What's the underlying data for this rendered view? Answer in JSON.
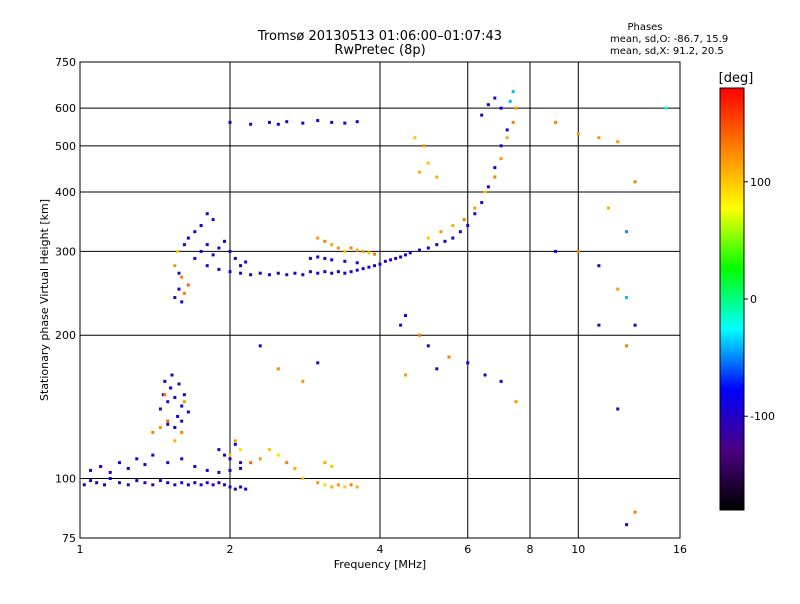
{
  "chart_data": {
    "type": "scatter",
    "title": "Tromsø 20130513 01:06:00–01:07:43",
    "subtitle": "RwPretec (8p)",
    "phase_block": {
      "heading": "Phases",
      "line_o": "mean, sd,O: -86.7, 15.9",
      "line_x": "mean, sd,X:  91.2, 20.5"
    },
    "xlabel": "Frequency [MHz]",
    "ylabel": "Stationary phase Virtual Height [km]",
    "x_scale": "log",
    "y_scale": "log",
    "xlim": [
      1,
      16
    ],
    "ylim": [
      75,
      750
    ],
    "x_ticks": [
      1,
      2,
      4,
      6,
      8,
      10,
      16
    ],
    "x_tick_labels": [
      "1",
      "2",
      "4",
      "6",
      "8",
      "10",
      "16"
    ],
    "y_ticks": [
      75,
      100,
      200,
      300,
      400,
      500,
      600,
      750
    ],
    "y_tick_labels": [
      "75",
      "100",
      "200",
      "300",
      "400",
      "500",
      "600",
      "750"
    ],
    "grid": true,
    "colorbar": {
      "title": "[deg]",
      "range": [
        -180,
        180
      ],
      "ticks": [
        100,
        0,
        -100
      ],
      "tick_labels": [
        "100",
        "0",
        "-100"
      ],
      "colors": [
        "#000000",
        "#4b0082",
        "#0000ff",
        "#00ffff",
        "#00ff00",
        "#ffff00",
        "#ff8000",
        "#ff0000"
      ]
    },
    "series": [
      {
        "points": [
          [
            1.02,
            97,
            -110
          ],
          [
            1.05,
            99,
            -100
          ],
          [
            1.08,
            98,
            -95
          ],
          [
            1.12,
            97,
            -105
          ],
          [
            1.15,
            100,
            -90
          ],
          [
            1.2,
            98,
            -110
          ],
          [
            1.25,
            97,
            -100
          ],
          [
            1.3,
            99,
            -95
          ],
          [
            1.35,
            98,
            -105
          ],
          [
            1.4,
            97,
            -110
          ],
          [
            1.45,
            99,
            -100
          ],
          [
            1.5,
            98,
            -90
          ],
          [
            1.55,
            97,
            -105
          ],
          [
            1.6,
            98,
            -100
          ],
          [
            1.65,
            97,
            -95
          ],
          [
            1.7,
            98,
            -110
          ],
          [
            1.75,
            97,
            -100
          ],
          [
            1.8,
            98,
            -105
          ],
          [
            1.85,
            97,
            -95
          ],
          [
            1.9,
            98,
            -100
          ],
          [
            1.95,
            97,
            -110
          ],
          [
            2.0,
            96,
            -100
          ],
          [
            2.05,
            95,
            -105
          ],
          [
            2.1,
            96,
            -100
          ],
          [
            2.15,
            95,
            -95
          ],
          [
            1.05,
            104,
            -100
          ],
          [
            1.1,
            106,
            -90
          ],
          [
            1.15,
            103,
            -110
          ],
          [
            1.2,
            108,
            -95
          ],
          [
            1.25,
            105,
            -100
          ],
          [
            1.3,
            110,
            -85
          ],
          [
            1.35,
            107,
            -100
          ],
          [
            1.4,
            112,
            -95
          ],
          [
            1.5,
            108,
            -100
          ],
          [
            1.6,
            110,
            -90
          ],
          [
            1.7,
            106,
            -100
          ],
          [
            1.8,
            104,
            -95
          ],
          [
            1.9,
            103,
            -100
          ],
          [
            2.0,
            104,
            -100
          ],
          [
            2.1,
            105,
            -95
          ],
          [
            1.45,
            140,
            -100
          ],
          [
            1.47,
            150,
            -95
          ],
          [
            1.5,
            145,
            -100
          ],
          [
            1.52,
            155,
            -90
          ],
          [
            1.55,
            148,
            -100
          ],
          [
            1.57,
            135,
            -95
          ],
          [
            1.6,
            142,
            -100
          ],
          [
            1.62,
            150,
            -100
          ],
          [
            1.65,
            138,
            -95
          ],
          [
            1.5,
            130,
            -100
          ],
          [
            1.55,
            128,
            -100
          ],
          [
            1.6,
            132,
            -95
          ],
          [
            1.48,
            160,
            -90
          ],
          [
            1.53,
            165,
            -100
          ],
          [
            1.58,
            158,
            -100
          ],
          [
            1.4,
            125,
            130
          ],
          [
            1.45,
            128,
            120
          ],
          [
            1.5,
            132,
            140
          ],
          [
            1.55,
            120,
            110
          ],
          [
            1.6,
            125,
            130
          ],
          [
            1.48,
            150,
            130
          ],
          [
            1.62,
            145,
            120
          ],
          [
            1.9,
            115,
            -100
          ],
          [
            1.95,
            112,
            -95
          ],
          [
            2.0,
            110,
            -100
          ],
          [
            2.05,
            118,
            -90
          ],
          [
            2.1,
            108,
            -100
          ],
          [
            2.0,
            112,
            100
          ],
          [
            2.05,
            120,
            120
          ],
          [
            2.1,
            115,
            90
          ],
          [
            2.2,
            108,
            140
          ],
          [
            2.3,
            110,
            120
          ],
          [
            2.4,
            115,
            100
          ],
          [
            2.5,
            112,
            90
          ],
          [
            2.6,
            108,
            130
          ],
          [
            2.7,
            105,
            110
          ],
          [
            2.8,
            100,
            100
          ],
          [
            3.0,
            98,
            120
          ],
          [
            3.1,
            97,
            90
          ],
          [
            3.2,
            96,
            110
          ],
          [
            3.3,
            97,
            120
          ],
          [
            3.4,
            96,
            100
          ],
          [
            3.5,
            97,
            130
          ],
          [
            3.6,
            96,
            110
          ],
          [
            3.1,
            108,
            110
          ],
          [
            3.2,
            106,
            100
          ],
          [
            1.55,
            240,
            -100
          ],
          [
            1.58,
            250,
            -100
          ],
          [
            1.6,
            235,
            -95
          ],
          [
            1.62,
            245,
            130
          ],
          [
            1.65,
            255,
            140
          ],
          [
            1.55,
            280,
            120
          ],
          [
            1.58,
            270,
            -100
          ],
          [
            1.6,
            265,
            130
          ],
          [
            1.57,
            300,
            100
          ],
          [
            1.62,
            310,
            -100
          ],
          [
            1.65,
            320,
            -95
          ],
          [
            1.7,
            330,
            -100
          ],
          [
            1.75,
            340,
            -90
          ],
          [
            1.8,
            360,
            -100
          ],
          [
            1.85,
            350,
            -95
          ],
          [
            1.7,
            290,
            -100
          ],
          [
            1.75,
            300,
            -90
          ],
          [
            1.8,
            310,
            -100
          ],
          [
            1.85,
            295,
            -95
          ],
          [
            1.9,
            305,
            -100
          ],
          [
            1.95,
            315,
            -90
          ],
          [
            2.0,
            300,
            -100
          ],
          [
            2.05,
            290,
            -100
          ],
          [
            2.1,
            280,
            -95
          ],
          [
            2.15,
            285,
            -100
          ],
          [
            1.8,
            280,
            -100
          ],
          [
            1.9,
            275,
            -95
          ],
          [
            2.0,
            272,
            -100
          ],
          [
            2.1,
            270,
            -100
          ],
          [
            2.2,
            268,
            -95
          ],
          [
            2.3,
            270,
            -100
          ],
          [
            2.4,
            268,
            -100
          ],
          [
            2.5,
            270,
            -95
          ],
          [
            2.6,
            268,
            -100
          ],
          [
            2.7,
            270,
            -100
          ],
          [
            2.8,
            268,
            -95
          ],
          [
            2.9,
            272,
            -100
          ],
          [
            3.0,
            270,
            -100
          ],
          [
            3.1,
            272,
            -95
          ],
          [
            3.2,
            270,
            -100
          ],
          [
            3.3,
            272,
            -100
          ],
          [
            3.4,
            270,
            -95
          ],
          [
            3.5,
            272,
            -100
          ],
          [
            3.6,
            274,
            -100
          ],
          [
            3.7,
            276,
            -95
          ],
          [
            3.8,
            278,
            -100
          ],
          [
            3.9,
            280,
            -100
          ],
          [
            4.0,
            282,
            -95
          ],
          [
            2.9,
            290,
            -100
          ],
          [
            3.0,
            292,
            -95
          ],
          [
            3.1,
            290,
            -100
          ],
          [
            3.2,
            288,
            -100
          ],
          [
            3.4,
            286,
            -95
          ],
          [
            3.6,
            284,
            -100
          ],
          [
            3.0,
            320,
            120
          ],
          [
            3.1,
            315,
            130
          ],
          [
            3.2,
            310,
            110
          ],
          [
            3.3,
            305,
            120
          ],
          [
            3.4,
            300,
            100
          ],
          [
            3.5,
            305,
            130
          ],
          [
            3.6,
            302,
            110
          ],
          [
            3.7,
            300,
            120
          ],
          [
            3.8,
            298,
            100
          ],
          [
            3.9,
            296,
            130
          ],
          [
            4.1,
            286,
            -100
          ],
          [
            4.2,
            288,
            -95
          ],
          [
            4.3,
            290,
            -100
          ],
          [
            4.4,
            292,
            -100
          ],
          [
            4.5,
            295,
            -95
          ],
          [
            4.6,
            298,
            -100
          ],
          [
            4.8,
            302,
            -100
          ],
          [
            5.0,
            305,
            -95
          ],
          [
            5.2,
            310,
            -100
          ],
          [
            5.4,
            315,
            -100
          ],
          [
            5.6,
            320,
            -95
          ],
          [
            5.8,
            330,
            -100
          ],
          [
            6.0,
            340,
            -100
          ],
          [
            6.2,
            360,
            -95
          ],
          [
            6.4,
            380,
            -100
          ],
          [
            6.6,
            410,
            -100
          ],
          [
            6.8,
            450,
            -95
          ],
          [
            7.0,
            500,
            -100
          ],
          [
            7.2,
            540,
            -100
          ],
          [
            5.0,
            320,
            100
          ],
          [
            5.3,
            330,
            120
          ],
          [
            5.6,
            340,
            110
          ],
          [
            5.9,
            350,
            130
          ],
          [
            6.2,
            370,
            120
          ],
          [
            6.5,
            400,
            100
          ],
          [
            6.8,
            430,
            130
          ],
          [
            7.0,
            470,
            120
          ],
          [
            7.2,
            520,
            110
          ],
          [
            7.4,
            560,
            130
          ],
          [
            7.5,
            600,
            120
          ],
          [
            4.8,
            440,
            110
          ],
          [
            5.0,
            460,
            100
          ],
          [
            4.9,
            500,
            120
          ],
          [
            5.2,
            430,
            110
          ],
          [
            4.7,
            520,
            100
          ],
          [
            6.4,
            580,
            -100
          ],
          [
            6.6,
            610,
            -95
          ],
          [
            6.8,
            630,
            -100
          ],
          [
            7.0,
            600,
            -90
          ],
          [
            7.3,
            620,
            -40
          ],
          [
            7.4,
            650,
            -40
          ],
          [
            2.0,
            560,
            -100
          ],
          [
            2.2,
            555,
            -95
          ],
          [
            2.4,
            560,
            -100
          ],
          [
            2.5,
            555,
            -90
          ],
          [
            2.6,
            562,
            -100
          ],
          [
            2.8,
            558,
            -95
          ],
          [
            3.0,
            565,
            -100
          ],
          [
            3.2,
            560,
            -100
          ],
          [
            3.4,
            558,
            -95
          ],
          [
            3.6,
            562,
            -100
          ],
          [
            4.4,
            210,
            -90
          ],
          [
            4.5,
            220,
            -100
          ],
          [
            4.8,
            200,
            130
          ],
          [
            5.0,
            190,
            -100
          ],
          [
            5.2,
            170,
            -100
          ],
          [
            5.5,
            180,
            130
          ],
          [
            6.0,
            175,
            -90
          ],
          [
            6.5,
            165,
            -100
          ],
          [
            7.0,
            160,
            -90
          ],
          [
            7.5,
            145,
            120
          ],
          [
            2.3,
            190,
            -100
          ],
          [
            2.5,
            170,
            130
          ],
          [
            2.8,
            160,
            120
          ],
          [
            3.0,
            175,
            -100
          ],
          [
            4.5,
            165,
            120
          ],
          [
            9.0,
            300,
            -100
          ],
          [
            10.0,
            300,
            130
          ],
          [
            11.0,
            280,
            -100
          ],
          [
            12.0,
            250,
            120
          ],
          [
            12.5,
            240,
            -40
          ],
          [
            13.0,
            210,
            -90
          ],
          [
            11.5,
            370,
            110
          ],
          [
            12.5,
            330,
            -50
          ],
          [
            13.0,
            420,
            130
          ],
          [
            9.0,
            560,
            130
          ],
          [
            10.0,
            530,
            120
          ],
          [
            11.0,
            520,
            120
          ],
          [
            12.0,
            510,
            120
          ],
          [
            15.0,
            600,
            -20
          ],
          [
            12.0,
            140,
            -100
          ],
          [
            12.5,
            80,
            -100
          ],
          [
            13.0,
            85,
            130
          ],
          [
            12.5,
            190,
            130
          ],
          [
            11.0,
            210,
            -100
          ]
        ]
      }
    ]
  }
}
